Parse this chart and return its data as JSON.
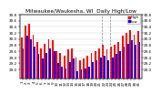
{
  "title": "Milwaukee/Waukesha, WI  Daily High/Low",
  "background_color": "#ffffff",
  "grid_color": "#cccccc",
  "high_color": "#ff0000",
  "low_color": "#0000ff",
  "ylim": [
    28.7,
    30.75
  ],
  "ybase": 28.7,
  "yticks": [
    29.0,
    29.2,
    29.4,
    29.6,
    29.8,
    30.0,
    30.2,
    30.4,
    30.6,
    30.8
  ],
  "dates": [
    "1",
    "2",
    "3",
    "4",
    "5",
    "6",
    "7",
    "8",
    "9",
    "10",
    "11",
    "12",
    "13",
    "14",
    "15",
    "16",
    "17",
    "18",
    "19",
    "20",
    "21",
    "22",
    "23",
    "24",
    "25",
    "26",
    "27",
    "28",
    "29",
    "30",
    "31"
  ],
  "high_values": [
    30.05,
    30.45,
    30.5,
    30.15,
    29.9,
    29.7,
    29.85,
    30.0,
    29.95,
    29.6,
    29.55,
    29.45,
    29.65,
    29.7,
    29.4,
    29.3,
    29.35,
    29.45,
    29.55,
    29.6,
    29.7,
    29.8,
    29.65,
    29.75,
    29.8,
    29.9,
    30.1,
    30.2,
    30.3,
    30.15,
    30.25
  ],
  "low_values": [
    29.7,
    30.1,
    30.0,
    29.75,
    29.5,
    29.35,
    29.55,
    29.7,
    29.6,
    29.2,
    29.1,
    29.05,
    29.25,
    29.35,
    28.95,
    29.0,
    29.05,
    29.1,
    29.25,
    29.3,
    29.4,
    29.45,
    29.3,
    29.4,
    29.5,
    29.6,
    29.75,
    29.85,
    29.95,
    29.8,
    29.9
  ],
  "vline_positions": [
    20.5,
    22.5
  ],
  "title_fontsize": 4.2,
  "tick_fontsize": 3.0,
  "legend_fontsize": 2.8,
  "bar_width": 0.42
}
